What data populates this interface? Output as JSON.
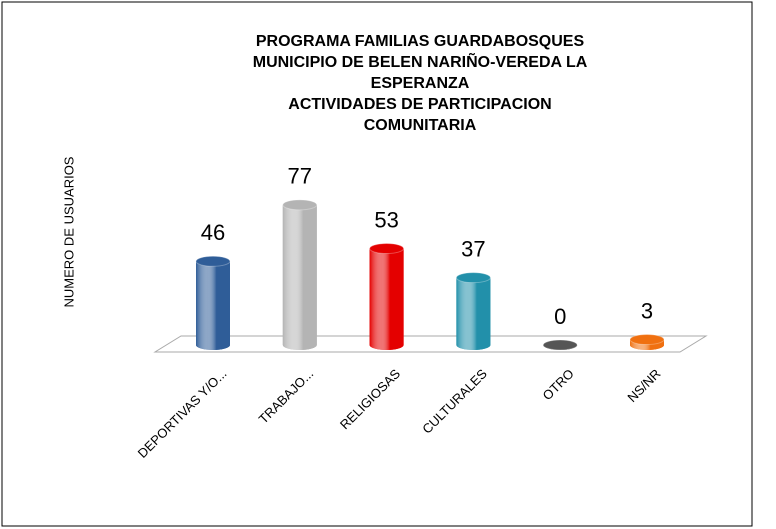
{
  "chart_data": {
    "type": "bar",
    "title": [
      "PROGRAMA FAMILIAS GUARDABOSQUES",
      "MUNICIPIO DE BELEN NARIÑO-VEREDA LA",
      "ESPERANZA",
      "ACTIVIDADES DE PARTICIPACION",
      "COMUNITARIA"
    ],
    "y_label": "NUMERO DE USUARIOS",
    "categories": [
      "DEPORTIVAS Y/O...",
      "TRABAJO...",
      "RELIGIOSAS",
      "CULTURALES",
      "OTRO",
      "NS/NR"
    ],
    "values": [
      46,
      77,
      53,
      37,
      0,
      3
    ],
    "colors": [
      "#2f5d98",
      "#b4b4b4",
      "#e40000",
      "#2290aa",
      "#555555",
      "#f07010"
    ],
    "ylim": [
      0,
      100
    ]
  }
}
